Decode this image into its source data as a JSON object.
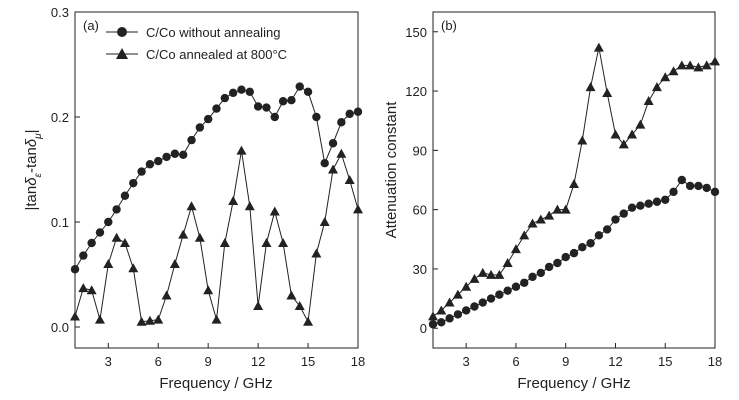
{
  "chart_data": [
    {
      "type": "line",
      "panel_label": "(a)",
      "xlabel": "Frequency / GHz",
      "ylabel": "|tan δε-tan δμ|",
      "ylabel_parts": {
        "bar_open": "|tan",
        "delta1": "δ",
        "sub_e": "ε",
        "dash": "-tan",
        "delta2": "δ",
        "sub_mu": "μ",
        "bar_close": "|"
      },
      "xlim": [
        1,
        18
      ],
      "ylim": [
        -0.02,
        0.3
      ],
      "xticks": [
        3,
        6,
        9,
        12,
        15,
        18
      ],
      "yticks": [
        0.0,
        0.1,
        0.2,
        0.3
      ],
      "ytick_labels": [
        "0.0",
        "0.1",
        "0.2",
        "0.3"
      ],
      "grid": false,
      "legend_placement": "top-left",
      "series": [
        {
          "name": "C/Co without annealing",
          "marker": "circle",
          "x": [
            1.0,
            1.5,
            2.0,
            2.5,
            3.0,
            3.5,
            4.0,
            4.5,
            5.0,
            5.5,
            6.0,
            6.5,
            7.0,
            7.5,
            8.0,
            8.5,
            9.0,
            9.5,
            10.0,
            10.5,
            11.0,
            11.5,
            12.0,
            12.5,
            13.0,
            13.5,
            14.0,
            14.5,
            15.0,
            15.5,
            16.0,
            16.5,
            17.0,
            17.5,
            18.0
          ],
          "y": [
            0.055,
            0.068,
            0.08,
            0.09,
            0.1,
            0.112,
            0.125,
            0.137,
            0.148,
            0.155,
            0.158,
            0.162,
            0.165,
            0.164,
            0.178,
            0.19,
            0.198,
            0.208,
            0.218,
            0.223,
            0.226,
            0.224,
            0.21,
            0.209,
            0.2,
            0.215,
            0.216,
            0.229,
            0.224,
            0.2,
            0.156,
            0.175,
            0.195,
            0.203,
            0.205
          ]
        },
        {
          "name": "C/Co annealed at 800°C",
          "marker": "triangle",
          "x": [
            1.0,
            1.5,
            2.0,
            2.5,
            3.0,
            3.5,
            4.0,
            4.5,
            5.0,
            5.5,
            6.0,
            6.5,
            7.0,
            7.5,
            8.0,
            8.5,
            9.0,
            9.5,
            10.0,
            10.5,
            11.0,
            11.5,
            12.0,
            12.5,
            13.0,
            13.5,
            14.0,
            14.5,
            15.0,
            15.5,
            16.0,
            16.5,
            17.0,
            17.5,
            18.0
          ],
          "y": [
            0.01,
            0.037,
            0.035,
            0.007,
            0.06,
            0.085,
            0.08,
            0.056,
            0.005,
            0.006,
            0.007,
            0.03,
            0.06,
            0.088,
            0.115,
            0.085,
            0.035,
            0.007,
            0.08,
            0.12,
            0.168,
            0.115,
            0.02,
            0.08,
            0.11,
            0.08,
            0.03,
            0.02,
            0.005,
            0.07,
            0.1,
            0.15,
            0.165,
            0.14,
            0.112
          ]
        }
      ]
    },
    {
      "type": "line",
      "panel_label": "(b)",
      "xlabel": "Frequency / GHz",
      "ylabel": "Attenuation constant",
      "xlim": [
        1,
        18
      ],
      "ylim": [
        -10,
        160
      ],
      "xticks": [
        3,
        6,
        9,
        12,
        15,
        18
      ],
      "yticks": [
        0,
        30,
        60,
        90,
        120,
        150
      ],
      "ytick_labels": [
        "0",
        "30",
        "60",
        "90",
        "120",
        "150"
      ],
      "grid": false,
      "series": [
        {
          "name": "C/Co without annealing",
          "marker": "circle",
          "x": [
            1.0,
            1.5,
            2.0,
            2.5,
            3.0,
            3.5,
            4.0,
            4.5,
            5.0,
            5.5,
            6.0,
            6.5,
            7.0,
            7.5,
            8.0,
            8.5,
            9.0,
            9.5,
            10.0,
            10.5,
            11.0,
            11.5,
            12.0,
            12.5,
            13.0,
            13.5,
            14.0,
            14.5,
            15.0,
            15.5,
            16.0,
            16.5,
            17.0,
            17.5,
            18.0
          ],
          "y": [
            2,
            3,
            5,
            7,
            9,
            11,
            13,
            15,
            17,
            19,
            21,
            23,
            26,
            28,
            31,
            33,
            36,
            38,
            41,
            43,
            47,
            50,
            55,
            58,
            61,
            62,
            63,
            64,
            65,
            69,
            75,
            72,
            72,
            71,
            69
          ]
        },
        {
          "name": "C/Co annealed at 800°C",
          "marker": "triangle",
          "x": [
            1.0,
            1.5,
            2.0,
            2.5,
            3.0,
            3.5,
            4.0,
            4.5,
            5.0,
            5.5,
            6.0,
            6.5,
            7.0,
            7.5,
            8.0,
            8.5,
            9.0,
            9.5,
            10.0,
            10.5,
            11.0,
            11.5,
            12.0,
            12.5,
            13.0,
            13.5,
            14.0,
            14.5,
            15.0,
            15.5,
            16.0,
            16.5,
            17.0,
            17.5,
            18.0
          ],
          "y": [
            6,
            9,
            13,
            17,
            21,
            25,
            28,
            27,
            27,
            33,
            40,
            47,
            53,
            55,
            57,
            60,
            60,
            73,
            95,
            122,
            142,
            119,
            98,
            93,
            98,
            103,
            115,
            122,
            127,
            130,
            133,
            133,
            132,
            133,
            135
          ]
        }
      ]
    }
  ]
}
